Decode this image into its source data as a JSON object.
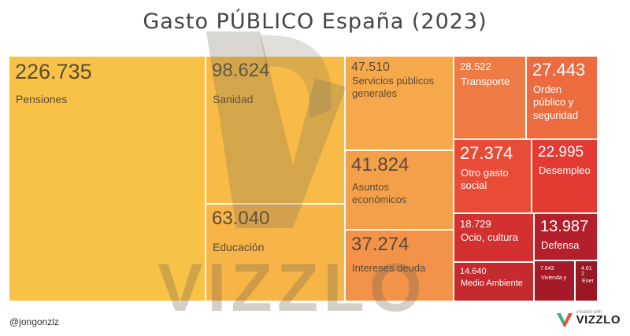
{
  "title": "Gasto PÚBLICO España (2023)",
  "footer": {
    "handle": "@jongonzlz",
    "brand_small": "created with",
    "brand_name": "VIZZLO"
  },
  "watermark": "VIZZLO",
  "chart_data": {
    "type": "treemap",
    "title": "Gasto PÚBLICO España (2023)",
    "items": [
      {
        "value": "226.735",
        "label": "Pensiones",
        "color": "#f8c246"
      },
      {
        "value": "98.624",
        "label": "Sanidad",
        "color": "#f8bb47"
      },
      {
        "value": "63.040",
        "label": "Educación",
        "color": "#f7b548"
      },
      {
        "value": "47.510",
        "label": "Servicios públicos\ngenerales",
        "color": "#f5a94a"
      },
      {
        "value": "41.824",
        "label": "Asuntos\neconómicos",
        "color": "#f4a04a"
      },
      {
        "value": "37.274",
        "label": "Intereses deuda",
        "color": "#f29349"
      },
      {
        "value": "28.522",
        "label": "Transporte",
        "color": "#ef7b44"
      },
      {
        "value": "27.443",
        "label": "Orden\npúblico y\nseguridad",
        "color": "#ec6c40"
      },
      {
        "value": "27.374",
        "label": "Otro gasto\nsocial",
        "color": "#e94c36"
      },
      {
        "value": "22.995",
        "label": "Desempleo",
        "color": "#e33a32"
      },
      {
        "value": "18.729",
        "label": "Ocio, cultura",
        "color": "#d33030"
      },
      {
        "value": "13.987",
        "label": "Defensa",
        "color": "#b31f2a"
      },
      {
        "value": "14.640",
        "label": "Medio Ambiente",
        "color": "#c42a2e"
      },
      {
        "value": "7.643",
        "label": "Vivienda y",
        "color": "#a51a26"
      },
      {
        "value": "4.61\n2",
        "label": "Ener",
        "color": "#9a1724"
      }
    ]
  }
}
